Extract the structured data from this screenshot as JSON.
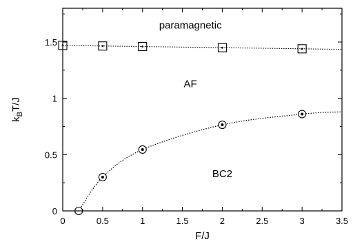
{
  "chart_data": {
    "type": "scatter",
    "xlabel": "F/J",
    "ylabel": {
      "main": "k",
      "sub": "B",
      "rest": "T/J"
    },
    "xlim": [
      0,
      3.5
    ],
    "ylim": [
      0,
      1.8
    ],
    "xticks": [
      "0",
      "0.5",
      "1",
      "1.5",
      "2",
      "2.5",
      "3",
      "3.5"
    ],
    "yticks": [
      "0",
      "0.5",
      "1",
      "1.5"
    ],
    "grid": false,
    "series": [
      {
        "marker": "square",
        "x": [
          0,
          0.5,
          1,
          2,
          3
        ],
        "y": [
          1.47,
          1.465,
          1.46,
          1.45,
          1.44
        ],
        "fit_line": {
          "style": "dotted",
          "x": [
            0,
            3.5
          ],
          "y": [
            1.47,
            1.435
          ]
        }
      },
      {
        "marker": "circle",
        "x": [
          0.2,
          0.5,
          1,
          2,
          3
        ],
        "y": [
          0.0,
          0.3,
          0.545,
          0.765,
          0.86
        ],
        "fit_line": {
          "style": "dotted",
          "x_start": 0.2,
          "x_end": 3.5
        }
      }
    ],
    "annotations": [
      {
        "text": "paramagnetic",
        "x": 1.6,
        "y": 1.62
      },
      {
        "text": "AF",
        "x": 1.6,
        "y": 1.1
      },
      {
        "text": "BC2",
        "x": 2.0,
        "y": 0.3
      }
    ]
  }
}
